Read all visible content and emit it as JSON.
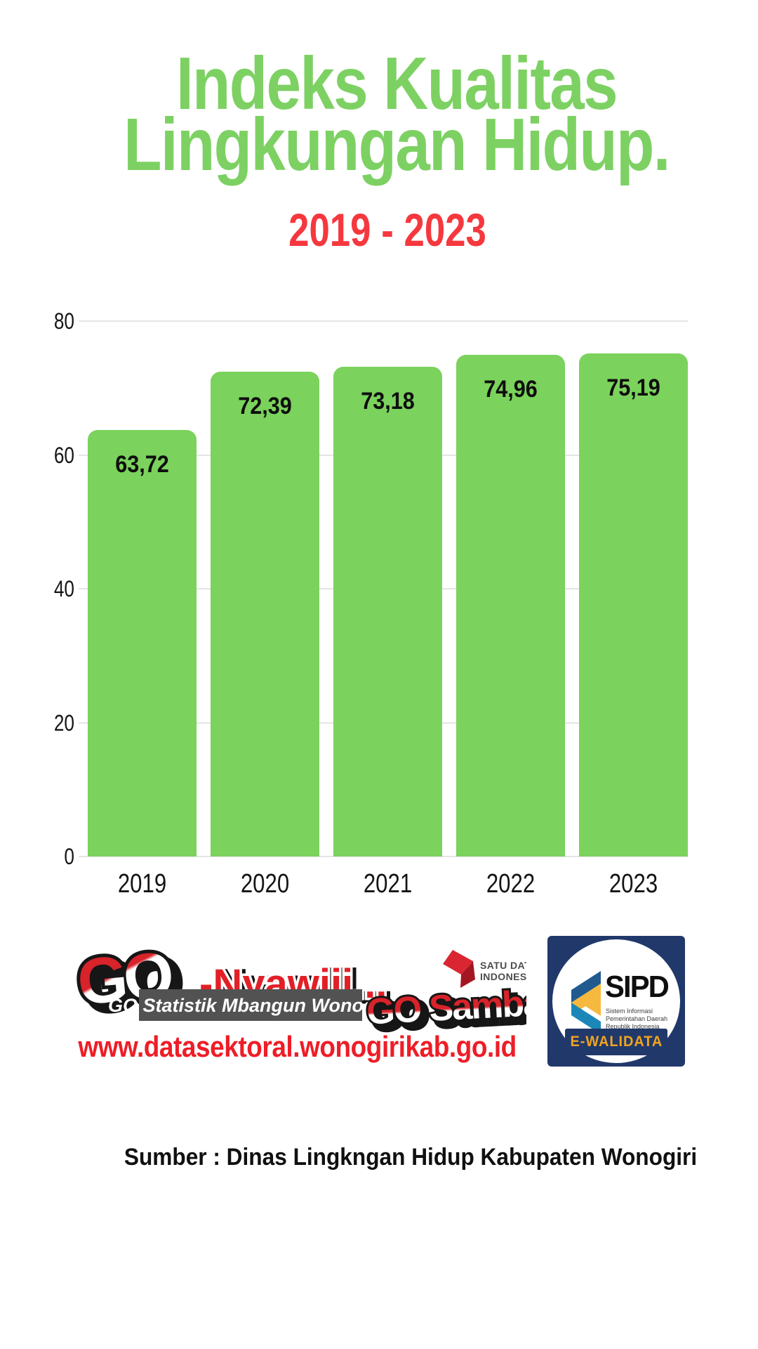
{
  "title": {
    "line1": "Indeks Kualitas",
    "line2": "Lingkungan Hidup.",
    "color": "#7dd163"
  },
  "subtitle": {
    "text": "2019 - 2023",
    "color": "#f5383e"
  },
  "chart_data": {
    "type": "bar",
    "categories": [
      "2019",
      "2020",
      "2021",
      "2022",
      "2023"
    ],
    "values": [
      63.72,
      72.39,
      73.18,
      74.96,
      75.19
    ],
    "value_labels": [
      "63,72",
      "72,39",
      "73,18",
      "74,96",
      "75,19"
    ],
    "title": "Indeks Kualitas Lingkungan Hidup.",
    "subtitle": "2019 - 2023",
    "xlabel": "",
    "ylabel": "",
    "ylim": [
      0,
      80
    ],
    "yticks": [
      0,
      20,
      40,
      60,
      80
    ],
    "grid": true,
    "legend": false,
    "bar_color": "#7bd25c",
    "gridline_color": "#e5e5e5"
  },
  "footer": {
    "go_logo": {
      "go_text": "GO",
      "nyawiji_text": "-Nyawiji...",
      "banner_text": "GO Statistik Mbangun Wonogiri",
      "sambang_text": "GO Sambang",
      "satu_data_line1": "SATU DATA",
      "satu_data_line2": "INDONESIA"
    },
    "url": "www.datasektoral.wonogirikab.go.id",
    "url_color": "#ee1d27",
    "sipd": {
      "name": "SIPD",
      "desc_line1": "Sistem Informasi Pemerintahan Daerah",
      "desc_line2": "Republik Indonesia",
      "badge": "E-WALIDATA",
      "navy": "#21386b",
      "badge_text_color": "#f0a41e"
    },
    "source": "Sumber : Dinas Lingkngan Hidup Kabupaten Wonogiri"
  }
}
